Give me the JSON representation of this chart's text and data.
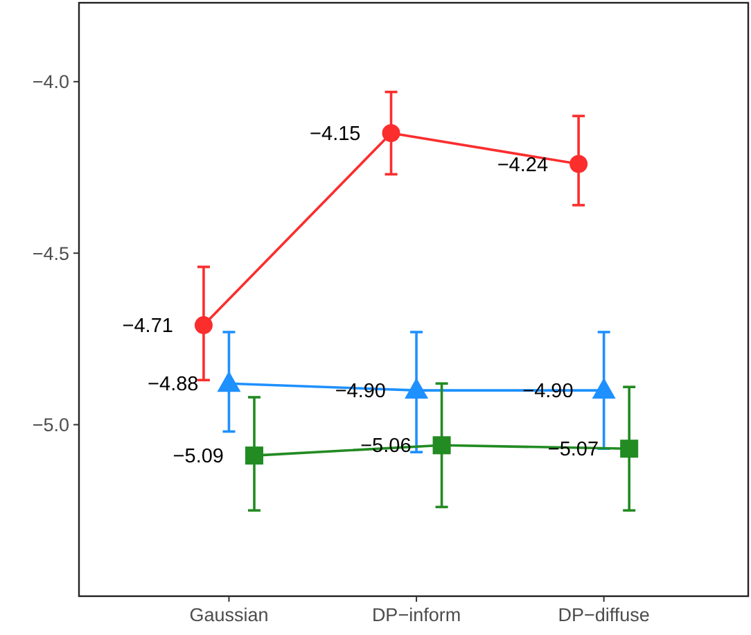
{
  "chart_data": {
    "type": "line",
    "categories": [
      "Gaussian",
      "DP−inform",
      "DP−diffuse"
    ],
    "ylim": [
      -5.5,
      -3.77
    ],
    "yticks": [
      {
        "value": -4.0,
        "label": "−4.0"
      },
      {
        "value": -4.5,
        "label": "−4.5"
      },
      {
        "value": -5.0,
        "label": "−5.0"
      }
    ],
    "grid": false,
    "series": [
      {
        "color": "#fb2d2d",
        "marker": "circle",
        "values": [
          -4.71,
          -4.15,
          -4.24
        ],
        "value_labels": [
          "−4.71",
          "−4.15",
          "−4.24"
        ],
        "errors": [
          [
            -4.87,
            -4.54
          ],
          [
            -4.27,
            -4.03
          ],
          [
            -4.36,
            -4.1
          ]
        ]
      },
      {
        "color": "#1e90ff",
        "marker": "triangle",
        "values": [
          -4.88,
          -4.9,
          -4.9
        ],
        "value_labels": [
          "−4.88",
          "−4.90",
          "−4.90"
        ],
        "errors": [
          [
            -5.02,
            -4.73
          ],
          [
            -5.08,
            -4.73
          ],
          [
            -5.07,
            -4.73
          ]
        ]
      },
      {
        "color": "#228b22",
        "marker": "square",
        "values": [
          -5.09,
          -5.06,
          -5.07
        ],
        "value_labels": [
          "−5.09",
          "−5.06",
          "−5.07"
        ],
        "errors": [
          [
            -5.25,
            -4.92
          ],
          [
            -5.24,
            -4.88
          ],
          [
            -5.25,
            -4.89
          ]
        ]
      }
    ]
  }
}
